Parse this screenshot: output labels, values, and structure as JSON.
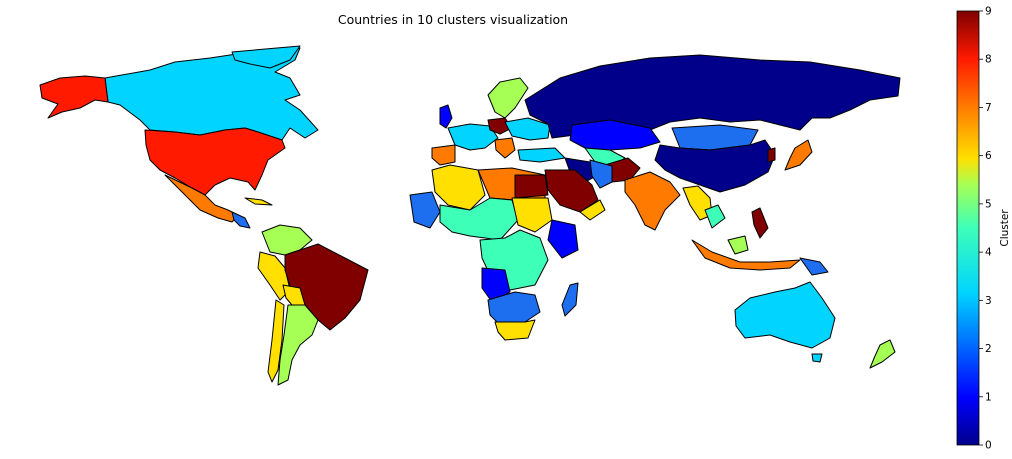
{
  "figure": {
    "title": "Countries in 10 clusters visualization"
  },
  "colorbar": {
    "label": "Cluster",
    "min": 0,
    "max": 9,
    "ticks": [
      "0",
      "1",
      "2",
      "3",
      "4",
      "5",
      "6",
      "7",
      "8",
      "9"
    ],
    "colormap": "jet"
  },
  "palette": {
    "c0": "#00008b",
    "c1": "#0000ff",
    "c2": "#1e6fef",
    "c3": "#00d4ff",
    "c4": "#3dffb8",
    "c5": "#a6ff55",
    "c6": "#ffe000",
    "c7": "#ff7a00",
    "c8": "#ff1a00",
    "c9": "#800000"
  },
  "legend": "none"
}
